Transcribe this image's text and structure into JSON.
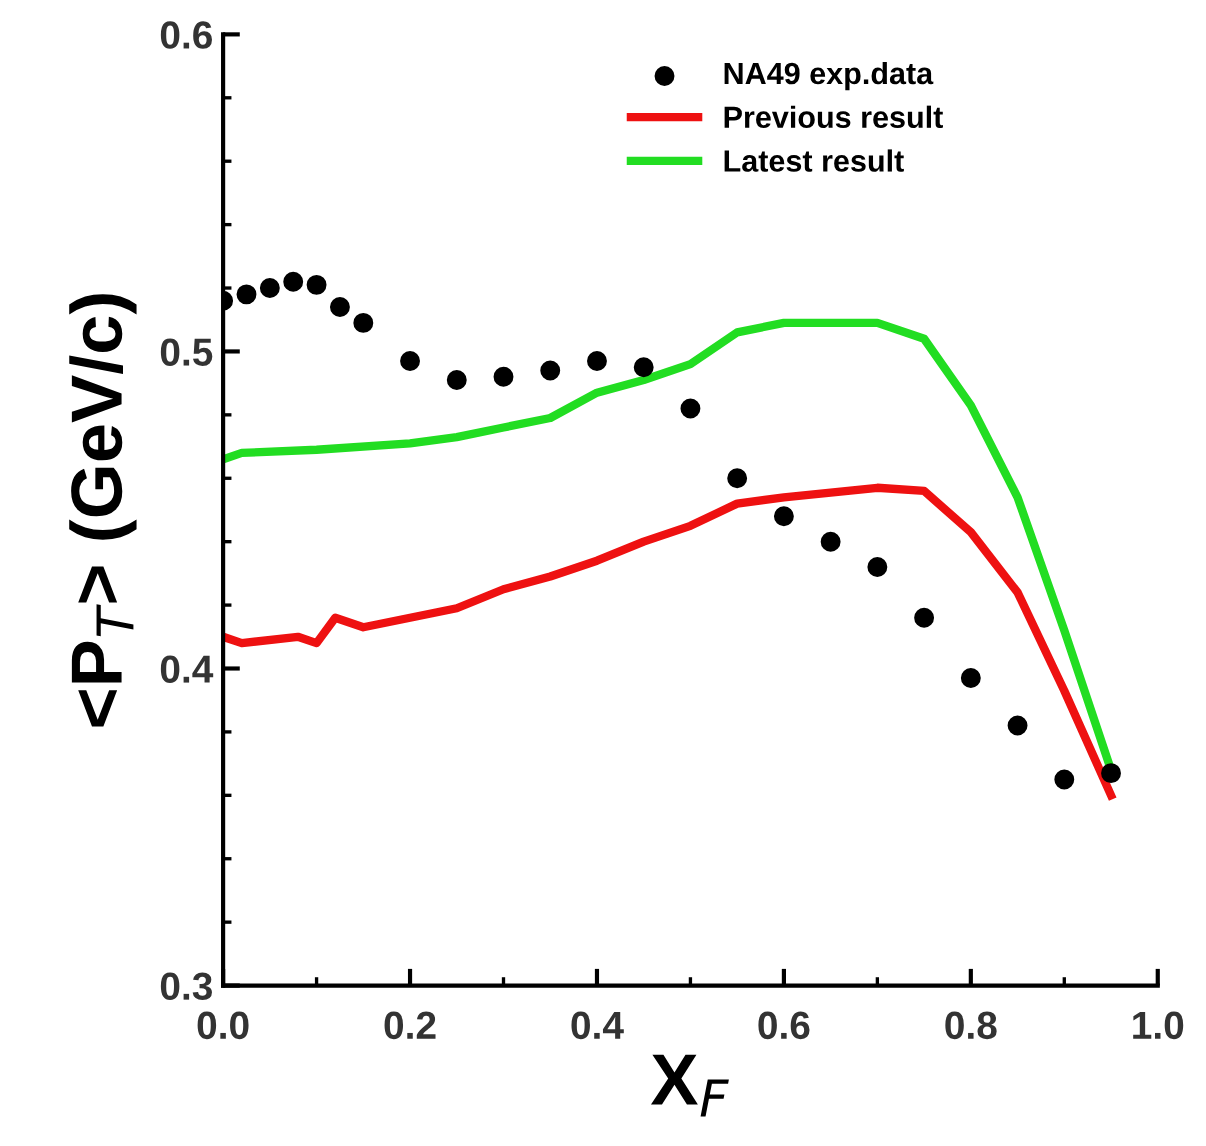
{
  "chart_data": {
    "type": "line",
    "xlabel": "X$_{F}$",
    "ylabel": "<P$_{T}$> (GeV/c)",
    "xlim": [
      0.0,
      1.0
    ],
    "ylim": [
      0.3,
      0.6
    ],
    "xticks": [
      {
        "value": 0.0,
        "label": "0.0"
      },
      0.2,
      0.4,
      0.6,
      0.8,
      {
        "value": 1.0,
        "label": "1.0"
      }
    ],
    "yticks": [
      0.3,
      0.4,
      0.5,
      0.6
    ],
    "grid": false,
    "legend": "top right",
    "series": [
      {
        "name": "NA49 exp.data",
        "type": "scatter",
        "marker": "circle",
        "color": "#000000",
        "x": [
          0.0,
          0.025,
          0.05,
          0.075,
          0.1,
          0.125,
          0.15,
          0.2,
          0.25,
          0.3,
          0.35,
          0.4,
          0.45,
          0.5,
          0.55,
          0.6,
          0.65,
          0.7,
          0.75,
          0.8,
          0.85,
          0.9,
          0.95
        ],
        "values": [
          0.516,
          0.518,
          0.52,
          0.522,
          0.521,
          0.514,
          0.509,
          0.497,
          0.491,
          0.492,
          0.494,
          0.497,
          0.495,
          0.482,
          0.46,
          0.448,
          0.44,
          0.432,
          0.416,
          0.397,
          0.382,
          0.365,
          0.367
        ]
      },
      {
        "name": "Previous result",
        "marker": "none",
        "color": "#ee1111",
        "x": [
          0.0,
          0.02,
          0.08,
          0.1,
          0.12,
          0.15,
          0.2,
          0.25,
          0.3,
          0.35,
          0.4,
          0.45,
          0.5,
          0.55,
          0.6,
          0.7,
          0.75,
          0.8,
          0.85,
          0.9,
          0.95
        ],
        "values": [
          0.41,
          0.408,
          0.41,
          0.408,
          0.416,
          0.413,
          0.416,
          0.419,
          0.425,
          0.429,
          0.434,
          0.44,
          0.445,
          0.452,
          0.454,
          0.457,
          0.456,
          0.443,
          0.424,
          0.393,
          0.36
        ]
      },
      {
        "name": "Latest result",
        "marker": "none",
        "color": "#22dd22",
        "x": [
          0.0,
          0.02,
          0.1,
          0.2,
          0.25,
          0.3,
          0.35,
          0.4,
          0.45,
          0.5,
          0.55,
          0.6,
          0.7,
          0.75,
          0.8,
          0.85,
          0.9,
          0.95
        ],
        "values": [
          0.466,
          0.468,
          0.469,
          0.471,
          0.473,
          0.476,
          0.479,
          0.487,
          0.491,
          0.496,
          0.506,
          0.509,
          0.509,
          0.504,
          0.483,
          0.454,
          0.412,
          0.368
        ]
      }
    ]
  }
}
